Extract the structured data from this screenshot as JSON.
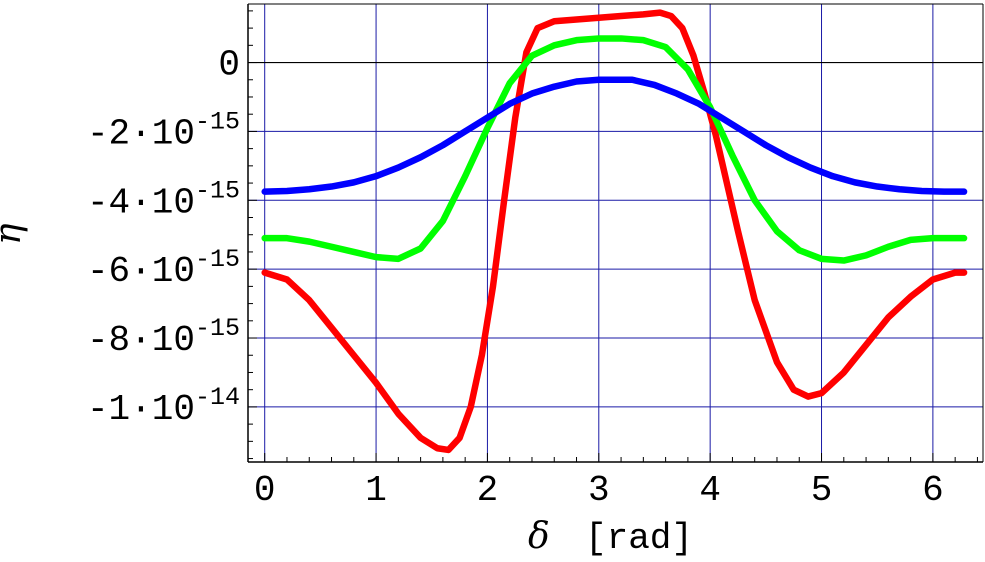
{
  "chart_data": {
    "type": "line",
    "xlabel": "δ",
    "xlabel_unit": "[rad]",
    "ylabel": "η",
    "xlim": [
      -0.15,
      6.45
    ],
    "ylim": [
      -1.16e-14,
      1.7e-15
    ],
    "grid": true,
    "x_ticks": [
      {
        "value": 0,
        "label": "0"
      },
      {
        "value": 1,
        "label": "1"
      },
      {
        "value": 2,
        "label": "2"
      },
      {
        "value": 3,
        "label": "3"
      },
      {
        "value": 4,
        "label": "4"
      },
      {
        "value": 5,
        "label": "5"
      },
      {
        "value": 6,
        "label": "6"
      }
    ],
    "y_ticks": [
      {
        "value": 0,
        "mantissa": "0",
        "exponent": ""
      },
      {
        "value": -2e-15,
        "mantissa": "-2·10",
        "exponent": "-15"
      },
      {
        "value": -4e-15,
        "mantissa": "-4·10",
        "exponent": "-15"
      },
      {
        "value": -6e-15,
        "mantissa": "-6·10",
        "exponent": "-15"
      },
      {
        "value": -8e-15,
        "mantissa": "-8·10",
        "exponent": "-15"
      },
      {
        "value": -1e-14,
        "mantissa": "-1·10",
        "exponent": "-14"
      }
    ],
    "series": [
      {
        "color": "#ff0000",
        "x": [
          0,
          0.2,
          0.4,
          0.6,
          0.8,
          1.0,
          1.2,
          1.4,
          1.55,
          1.65,
          1.75,
          1.85,
          1.95,
          2.05,
          2.15,
          2.25,
          2.35,
          2.45,
          2.6,
          2.8,
          3.0,
          3.2,
          3.4,
          3.55,
          3.65,
          3.75,
          3.85,
          3.95,
          4.05,
          4.15,
          4.25,
          4.4,
          4.6,
          4.75,
          4.88,
          5.0,
          5.2,
          5.4,
          5.6,
          5.8,
          6.0,
          6.2,
          6.28
        ],
        "y": [
          -6.1e-15,
          -6.3e-15,
          -6.9e-15,
          -7.7e-15,
          -8.5e-15,
          -9.3e-15,
          -1.02e-14,
          -1.09e-14,
          -1.12e-14,
          -1.125e-14,
          -1.09e-14,
          -1e-14,
          -8.5e-15,
          -6.5e-15,
          -4e-15,
          -1.6e-15,
          3e-16,
          1e-15,
          1.2e-15,
          1.25e-15,
          1.3e-15,
          1.35e-15,
          1.4e-15,
          1.45e-15,
          1.35e-15,
          1e-15,
          2e-16,
          -9e-16,
          -2.1e-15,
          -3.5e-15,
          -4.9e-15,
          -6.9e-15,
          -8.7e-15,
          -9.5e-15,
          -9.7e-15,
          -9.6e-15,
          -9e-15,
          -8.2e-15,
          -7.4e-15,
          -6.8e-15,
          -6.3e-15,
          -6.1e-15,
          -6.1e-15
        ]
      },
      {
        "color": "#00ff00",
        "x": [
          0,
          0.2,
          0.4,
          0.6,
          0.8,
          1.0,
          1.2,
          1.4,
          1.6,
          1.8,
          2.0,
          2.2,
          2.4,
          2.6,
          2.8,
          3.0,
          3.2,
          3.4,
          3.6,
          3.8,
          4.0,
          4.2,
          4.4,
          4.6,
          4.8,
          5.0,
          5.2,
          5.4,
          5.6,
          5.8,
          6.0,
          6.28
        ],
        "y": [
          -5.1e-15,
          -5.1e-15,
          -5.2e-15,
          -5.35e-15,
          -5.5e-15,
          -5.65e-15,
          -5.7e-15,
          -5.4e-15,
          -4.6e-15,
          -3.3e-15,
          -1.9e-15,
          -6e-16,
          2e-16,
          5e-16,
          6.5e-16,
          7e-16,
          7e-16,
          6.5e-16,
          4.5e-16,
          -2e-16,
          -1.3e-15,
          -2.7e-15,
          -4e-15,
          -4.9e-15,
          -5.45e-15,
          -5.7e-15,
          -5.75e-15,
          -5.6e-15,
          -5.35e-15,
          -5.15e-15,
          -5.1e-15,
          -5.1e-15
        ]
      },
      {
        "color": "#0000ff",
        "x": [
          0,
          0.2,
          0.4,
          0.6,
          0.8,
          1.0,
          1.2,
          1.4,
          1.6,
          1.8,
          2.0,
          2.2,
          2.4,
          2.6,
          2.8,
          3.0,
          3.14,
          3.3,
          3.5,
          3.7,
          3.9,
          4.1,
          4.3,
          4.5,
          4.7,
          4.9,
          5.1,
          5.3,
          5.5,
          5.7,
          5.9,
          6.1,
          6.28
        ],
        "y": [
          -3.75e-15,
          -3.73e-15,
          -3.68e-15,
          -3.6e-15,
          -3.48e-15,
          -3.3e-15,
          -3.05e-15,
          -2.75e-15,
          -2.4e-15,
          -2e-15,
          -1.6e-15,
          -1.2e-15,
          -9e-16,
          -7e-16,
          -5.5e-16,
          -5e-16,
          -5e-16,
          -5e-16,
          -6.5e-16,
          -9e-16,
          -1.2e-15,
          -1.6e-15,
          -2e-15,
          -2.4e-15,
          -2.75e-15,
          -3.05e-15,
          -3.3e-15,
          -3.48e-15,
          -3.6e-15,
          -3.68e-15,
          -3.73e-15,
          -3.75e-15,
          -3.75e-15
        ]
      }
    ]
  }
}
